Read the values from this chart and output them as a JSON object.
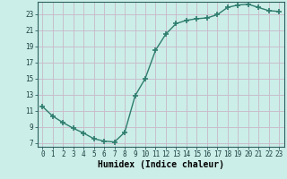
{
  "x": [
    0,
    1,
    2,
    3,
    4,
    5,
    6,
    7,
    8,
    9,
    10,
    11,
    12,
    13,
    14,
    15,
    16,
    17,
    18,
    19,
    20,
    21,
    22,
    23
  ],
  "y": [
    11.5,
    10.3,
    9.5,
    8.8,
    8.2,
    7.5,
    7.2,
    7.1,
    8.3,
    12.8,
    15.0,
    18.5,
    20.5,
    21.8,
    22.2,
    22.4,
    22.5,
    22.9,
    23.8,
    24.1,
    24.2,
    23.8,
    23.4,
    23.3
  ],
  "line_color": "#2e7d6e",
  "marker": "+",
  "marker_size": 4,
  "marker_edge_width": 1.2,
  "bg_color": "#cceee8",
  "grid_color": "#c8b8c8",
  "xlabel": "Humidex (Indice chaleur)",
  "xlim": [
    -0.5,
    23.5
  ],
  "ylim": [
    6.5,
    24.5
  ],
  "yticks": [
    7,
    9,
    11,
    13,
    15,
    17,
    19,
    21,
    23
  ],
  "xticks": [
    0,
    1,
    2,
    3,
    4,
    5,
    6,
    7,
    8,
    9,
    10,
    11,
    12,
    13,
    14,
    15,
    16,
    17,
    18,
    19,
    20,
    21,
    22,
    23
  ],
  "tick_label_fontsize": 5.5,
  "xlabel_fontsize": 7,
  "line_width": 1.0
}
